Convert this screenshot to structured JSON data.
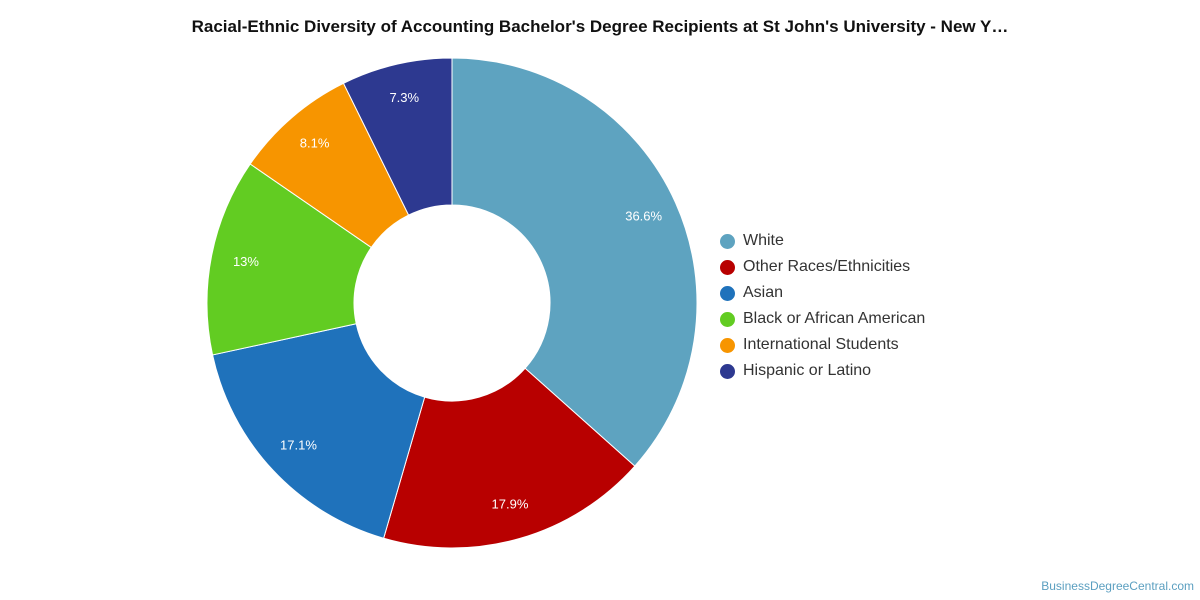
{
  "title": "Racial-Ethnic Diversity of Accounting Bachelor's Degree Recipients at St John's University - New Y…",
  "credit": "BusinessDegreeCentral.com",
  "chart_data": {
    "type": "pie",
    "style": "donut",
    "title": "Racial-Ethnic Diversity of Accounting Bachelor's Degree Recipients at St John's University - New Y…",
    "legend_position": "right",
    "slices": [
      {
        "name": "White",
        "value": 36.6,
        "label": "36.6%",
        "color": "#5ea3c0"
      },
      {
        "name": "Other Races/Ethnicities",
        "value": 17.9,
        "label": "17.9%",
        "color": "#b80000"
      },
      {
        "name": "Asian",
        "value": 17.1,
        "label": "17.1%",
        "color": "#1f72bb"
      },
      {
        "name": "Black or African American",
        "value": 13,
        "label": "13%",
        "color": "#62cc22"
      },
      {
        "name": "International Students",
        "value": 8.1,
        "label": "8.1%",
        "color": "#f79500"
      },
      {
        "name": "Hispanic or Latino",
        "value": 7.3,
        "label": "7.3%",
        "color": "#2d3990"
      }
    ]
  }
}
